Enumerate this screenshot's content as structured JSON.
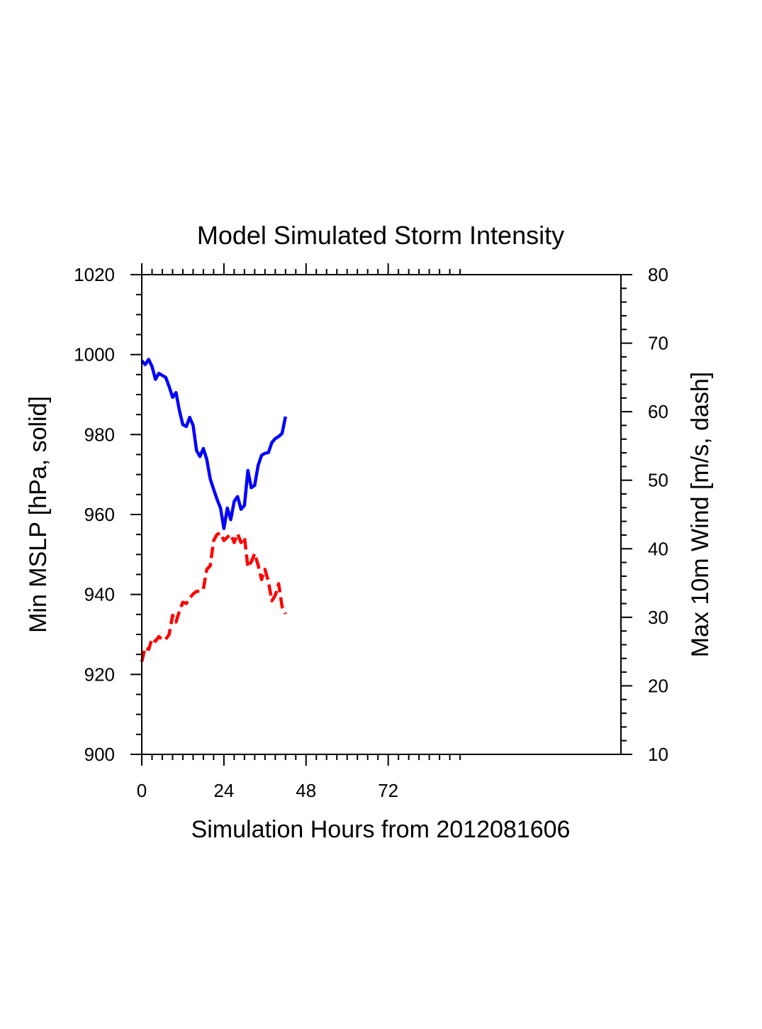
{
  "chart_data": {
    "type": "line",
    "title": "Model Simulated Storm Intensity",
    "xlabel": "Simulation Hours from 2012081606",
    "ylabel_left": "Min MSLP  [hPa, solid]",
    "ylabel_right": "Max 10m Wind  [m/s, dash]",
    "xlim": [
      0,
      140
    ],
    "ylim_left": [
      900,
      1020
    ],
    "ylim_right": [
      10,
      80
    ],
    "x_ticks": [
      0,
      24,
      48,
      72
    ],
    "y_ticks_left": [
      900,
      920,
      940,
      960,
      980,
      1000,
      1020
    ],
    "y_ticks_right": [
      10,
      20,
      30,
      40,
      50,
      60,
      70,
      80
    ],
    "grid": false,
    "series": [
      {
        "axis": "left",
        "style": "solid",
        "color": "#0000ff",
        "x": [
          0,
          1,
          2,
          3,
          4,
          5,
          6,
          7,
          8,
          9,
          10,
          11,
          12,
          13,
          14,
          15,
          16,
          17,
          18,
          19,
          20,
          21,
          22,
          23,
          24,
          25,
          26,
          27,
          28,
          29,
          30,
          31,
          32,
          33,
          34,
          35,
          36,
          37,
          38,
          39,
          40,
          41,
          42
        ],
        "values": [
          998.5,
          997.5,
          998.8,
          997,
          993.8,
          995.3,
          994.8,
          994.3,
          992,
          989.3,
          990.5,
          986,
          982.5,
          982,
          984.3,
          982.3,
          976,
          974.5,
          976.5,
          973.8,
          968.9,
          966.3,
          963.8,
          961.6,
          956.5,
          961.6,
          958.7,
          963.3,
          964.5,
          961.3,
          962.3,
          971,
          966.7,
          967.3,
          972.3,
          974.8,
          975.3,
          975.5,
          978,
          979,
          979.5,
          980.3,
          984.5
        ]
      },
      {
        "axis": "right",
        "style": "dash",
        "color": "#ff0000",
        "x": [
          0,
          1,
          2,
          3,
          4,
          5,
          6,
          7,
          8,
          9,
          10,
          11,
          12,
          13,
          14,
          15,
          16,
          17,
          18,
          19,
          20,
          21,
          22,
          23,
          24,
          25,
          26,
          27,
          28,
          29,
          30,
          31,
          32,
          33,
          34,
          35,
          36,
          37,
          38,
          39,
          40,
          41,
          42
        ],
        "values": [
          23.5,
          25.6,
          25.3,
          26.9,
          26.5,
          27.2,
          26.7,
          26.8,
          27.5,
          30.3,
          29.3,
          30.9,
          32.2,
          32,
          32.8,
          33.4,
          33.8,
          33.8,
          34.1,
          37,
          37.5,
          41.2,
          42.1,
          42.3,
          41.2,
          41.7,
          42.1,
          40.9,
          42.2,
          40.9,
          41.7,
          37.3,
          38.1,
          39.3,
          37.6,
          35.5,
          37,
          35.2,
          32.4,
          33.2,
          34.9,
          31.5,
          30.5
        ]
      }
    ]
  }
}
